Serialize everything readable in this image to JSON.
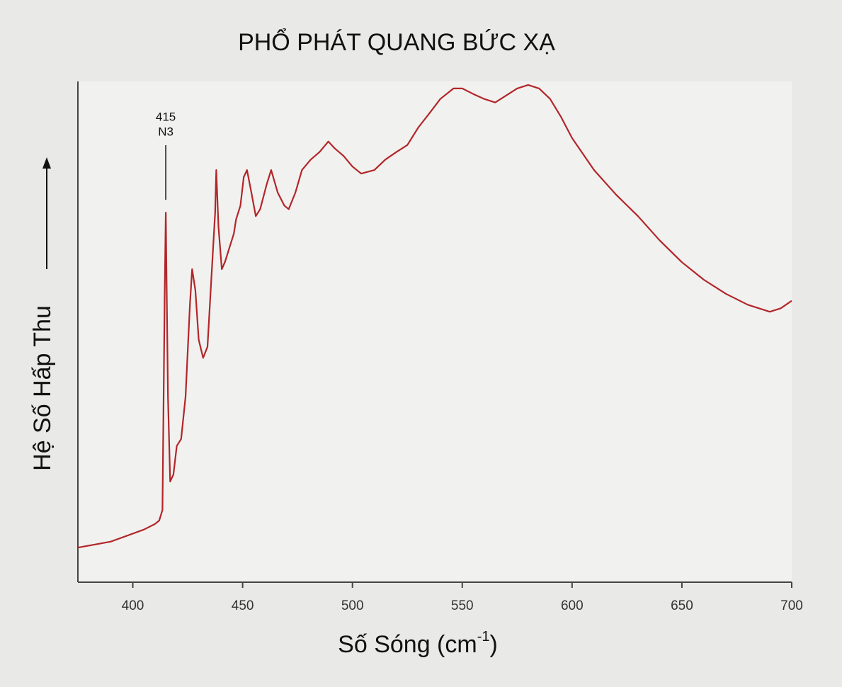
{
  "chart_data": {
    "type": "line",
    "title": "PHỔ PHÁT QUANG BỨC XẠ",
    "xlabel": [
      "Số Sóng (cm",
      "-1",
      ")"
    ],
    "ylabel": "Hệ Số Hấp Thu",
    "annotation": {
      "text": [
        "415",
        "N3"
      ],
      "x": 415
    },
    "color": "#b2262a",
    "xlim": [
      375,
      700
    ],
    "ylim": [
      0,
      100
    ],
    "xticks": [
      400,
      450,
      500,
      550,
      600,
      650,
      700
    ],
    "x": [
      375,
      390,
      405,
      410,
      412,
      413.5,
      414.5,
      415,
      416,
      417,
      418.5,
      420,
      422,
      424,
      426,
      427,
      428.5,
      430,
      432,
      434,
      436,
      437.5,
      438,
      439,
      440.5,
      442,
      444,
      446,
      447,
      449,
      450.5,
      452,
      454,
      456,
      458,
      461,
      463,
      466,
      469,
      471,
      474,
      477,
      481,
      485,
      489,
      492,
      496,
      500,
      504,
      510,
      515,
      520,
      525,
      530,
      535,
      540,
      546,
      550,
      555,
      560,
      565,
      570,
      575,
      580,
      585,
      590,
      595,
      600,
      610,
      620,
      630,
      640,
      650,
      660,
      670,
      680,
      690,
      695,
      700
    ],
    "values": [
      6.9,
      8.1,
      10.5,
      11.6,
      12.3,
      14.4,
      56.9,
      73.8,
      37,
      20.1,
      21.5,
      27.2,
      28.6,
      37,
      55.4,
      62.5,
      58.3,
      48.4,
      44.8,
      47,
      62.5,
      73.8,
      82.3,
      71,
      62.5,
      64,
      66.8,
      69.6,
      72.4,
      75.2,
      80.9,
      82.3,
      77.8,
      73.1,
      74.5,
      79.5,
      82.3,
      77.8,
      75.2,
      74.5,
      77.8,
      82.3,
      84.4,
      85.9,
      88,
      86.6,
      85.1,
      83,
      81.6,
      82.3,
      84.4,
      85.9,
      87.3,
      90.8,
      93.6,
      96.5,
      98.6,
      98.6,
      97.5,
      96.5,
      95.8,
      97.2,
      98.6,
      99.3,
      98.6,
      96.5,
      92.9,
      88.7,
      82.3,
      77.4,
      73.1,
      68.2,
      63.9,
      60.4,
      57.6,
      55.4,
      54,
      54.7,
      56.2
    ]
  }
}
